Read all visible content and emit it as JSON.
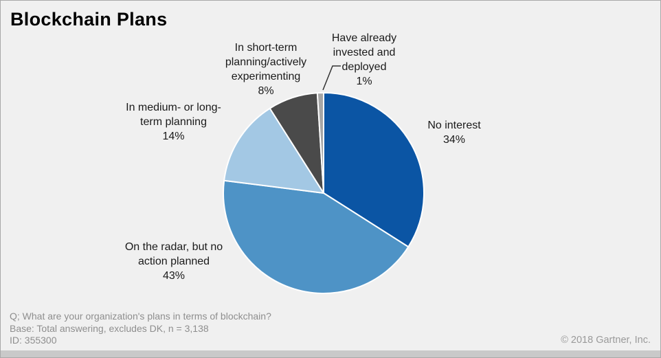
{
  "title": "Blockchain Plans",
  "chart_data": {
    "type": "pie",
    "title": "Blockchain Plans",
    "start_angle_deg": -90,
    "direction": "clockwise",
    "unit": "%",
    "slices": [
      {
        "name": "No interest",
        "value": 34,
        "color": "#0B55A4",
        "label": "No interest\n34%"
      },
      {
        "name": "On the radar, but no action planned",
        "value": 43,
        "color": "#4E93C6",
        "label": "On the radar, but no\naction planned\n43%"
      },
      {
        "name": "In medium- or long-term planning",
        "value": 14,
        "color": "#A3C8E4",
        "label": "In medium- or long-\nterm planning\n14%"
      },
      {
        "name": "In short-term planning/actively experimenting",
        "value": 8,
        "color": "#4A4A4A",
        "label": "In short-term\nplanning/actively\nexperimenting\n8%"
      },
      {
        "name": "Have already invested and deployed",
        "value": 1,
        "color": "#A6A6A6",
        "label": "Have already\ninvested and\ndeployed\n1%"
      }
    ]
  },
  "footer": {
    "question": "Q; What are your organization's plans in terms of blockchain?",
    "base": "Base: Total answering, excludes DK, n = 3,138",
    "id": "ID: 355300",
    "copyright": "© 2018 Gartner, Inc."
  }
}
